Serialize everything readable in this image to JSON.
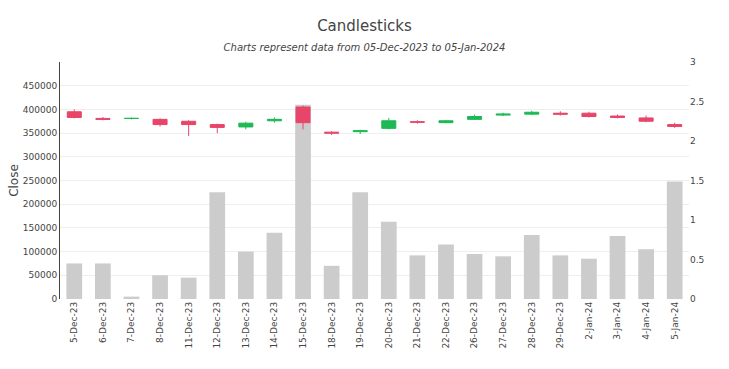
{
  "chart_data": {
    "type": "candlestick",
    "title": "Candlesticks",
    "subtitle": "Charts represent data from 05-Dec-2023 to 05-Jan-2024",
    "ylabel": "Close",
    "categories": [
      "5-Dec-23",
      "6-Dec-23",
      "7-Dec-23",
      "8-Dec-23",
      "11-Dec-23",
      "12-Dec-23",
      "13-Dec-23",
      "14-Dec-23",
      "15-Dec-23",
      "18-Dec-23",
      "19-Dec-23",
      "20-Dec-23",
      "21-Dec-23",
      "22-Dec-23",
      "26-Dec-23",
      "27-Dec-23",
      "28-Dec-23",
      "29-Dec-23",
      "2-Jan-24",
      "3-Jan-24",
      "4-Jan-24",
      "5-Jan-24"
    ],
    "series": [
      {
        "type": "bar",
        "color": "#cccccc",
        "values": [
          75000,
          75000,
          5000,
          50000,
          45000,
          225000,
          100000,
          140000,
          410000,
          70000,
          225000,
          163000,
          92000,
          115000,
          95000,
          90000,
          135000,
          92000,
          85000,
          133000,
          105000,
          248000
        ]
      },
      {
        "type": "candlestick",
        "open": [
          395000,
          381000,
          381000,
          379000,
          375000,
          368000,
          363000,
          376000,
          405000,
          352000,
          353000,
          360000,
          374000,
          372000,
          379000,
          388000,
          390000,
          392000,
          392000,
          386000,
          382000,
          368000
        ],
        "high": [
          400000,
          384000,
          383000,
          381000,
          377000,
          370000,
          374000,
          383000,
          408000,
          354000,
          357000,
          382000,
          377000,
          378000,
          389000,
          393000,
          397000,
          396000,
          395000,
          389000,
          387000,
          372000
        ],
        "low": [
          381000,
          377000,
          379000,
          364000,
          344000,
          350000,
          358000,
          372000,
          358000,
          346000,
          348000,
          358000,
          370000,
          371000,
          378000,
          386000,
          388000,
          387000,
          383000,
          381000,
          373000,
          361000
        ],
        "close": [
          383000,
          379000,
          381000,
          368000,
          368000,
          362000,
          371000,
          379000,
          372000,
          350000,
          355000,
          376000,
          373000,
          376000,
          385000,
          390000,
          394000,
          390000,
          385000,
          383000,
          375000,
          364000
        ],
        "colors": [
          "#e8456a",
          "#e8456a",
          "#1db954",
          "#e8456a",
          "#e8456a",
          "#e8456a",
          "#1db954",
          "#1db954",
          "#e8456a",
          "#e8456a",
          "#1db954",
          "#1db954",
          "#e8456a",
          "#1db954",
          "#1db954",
          "#1db954",
          "#1db954",
          "#e8456a",
          "#e8456a",
          "#e8456a",
          "#e8456a",
          "#e8456a"
        ]
      }
    ],
    "ylim": [
      0,
      500000
    ],
    "yticks": [
      0,
      50000,
      100000,
      150000,
      200000,
      250000,
      300000,
      350000,
      400000,
      450000
    ],
    "y2lim": [
      0,
      3
    ],
    "y2ticks": [
      0,
      0.5,
      1,
      1.5,
      2,
      2.5,
      3
    ],
    "grid": true
  }
}
